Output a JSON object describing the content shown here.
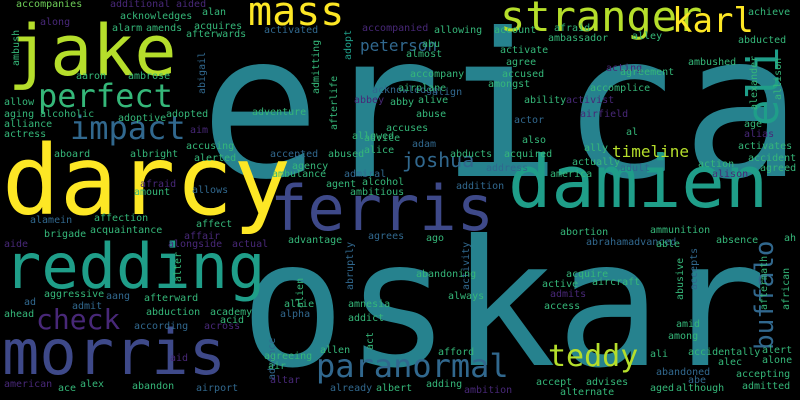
{
  "palette": {
    "background": "#000000",
    "yellow": "#fde725",
    "lime": "#b5de2b",
    "green": "#6ece58",
    "teal_green": "#35b779",
    "teal": "#1f9e89",
    "blue_teal": "#26828e",
    "steel": "#31688e",
    "indigo": "#3e4989",
    "purple": "#482878",
    "dark_purple": "#440154"
  },
  "words": [
    {
      "text": "erica",
      "color": "#26828e"
    },
    {
      "text": "oskar",
      "color": "#26828e"
    },
    {
      "text": "darcy",
      "color": "#fde725"
    },
    {
      "text": "damien",
      "color": "#1f9e89"
    },
    {
      "text": "jake",
      "color": "#b5de2b"
    },
    {
      "text": "ferris",
      "color": "#3e4989"
    },
    {
      "text": "redding",
      "color": "#1f9e89"
    },
    {
      "text": "morris",
      "color": "#3e4989"
    },
    {
      "text": "stranger",
      "color": "#b5de2b"
    },
    {
      "text": "mass",
      "color": "#fde725"
    },
    {
      "text": "karl",
      "color": "#fde725"
    },
    {
      "text": "perfect",
      "color": "#35b779"
    },
    {
      "text": "impact",
      "color": "#31688e"
    },
    {
      "text": "paranormal",
      "color": "#31688e"
    },
    {
      "text": "check",
      "color": "#482878"
    },
    {
      "text": "teddy",
      "color": "#b5de2b"
    },
    {
      "text": "eli",
      "color": "#1f9e89"
    },
    {
      "text": "buffalo",
      "color": "#31688e"
    },
    {
      "text": "joshua",
      "color": "#31688e"
    },
    {
      "text": "peterson",
      "color": "#31688e"
    },
    {
      "text": "timeline",
      "color": "#b5de2b"
    },
    {
      "text": "accompanies",
      "color": "#6ece58"
    },
    {
      "text": "additional",
      "color": "#482878"
    },
    {
      "text": "aided",
      "color": "#482878"
    },
    {
      "text": "alan",
      "color": "#35b779"
    },
    {
      "text": "acknowledges",
      "color": "#35b779"
    },
    {
      "text": "acquires",
      "color": "#35b779"
    },
    {
      "text": "alarm",
      "color": "#35b779"
    },
    {
      "text": "amends",
      "color": "#35b779"
    },
    {
      "text": "afterwards",
      "color": "#35b779"
    },
    {
      "text": "activated",
      "color": "#31688e"
    },
    {
      "text": "adopt",
      "color": "#1f9e89"
    },
    {
      "text": "accompanied",
      "color": "#482878"
    },
    {
      "text": "abu",
      "color": "#35b779"
    },
    {
      "text": "almost",
      "color": "#35b779"
    },
    {
      "text": "allowing",
      "color": "#35b779"
    },
    {
      "text": "account",
      "color": "#35b779"
    },
    {
      "text": "afraid",
      "color": "#35b779"
    },
    {
      "text": "ambassador",
      "color": "#35b779"
    },
    {
      "text": "achieve",
      "color": "#35b779"
    },
    {
      "text": "abducted",
      "color": "#35b779"
    },
    {
      "text": "alley",
      "color": "#35b779"
    },
    {
      "text": "along",
      "color": "#482878"
    },
    {
      "text": "ambush",
      "color": "#35b779"
    },
    {
      "text": "aaron",
      "color": "#35b779"
    },
    {
      "text": "ambrose",
      "color": "#35b779"
    },
    {
      "text": "abigail",
      "color": "#31688e"
    },
    {
      "text": "admitting",
      "color": "#35b779"
    },
    {
      "text": "afterlife",
      "color": "#35b779"
    },
    {
      "text": "acknowledge",
      "color": "#31688e"
    },
    {
      "text": "accompany",
      "color": "#35b779"
    },
    {
      "text": "amongst",
      "color": "#35b779"
    },
    {
      "text": "activate",
      "color": "#35b779"
    },
    {
      "text": "agree",
      "color": "#35b779"
    },
    {
      "text": "accused",
      "color": "#35b779"
    },
    {
      "text": "acting",
      "color": "#482878"
    },
    {
      "text": "agreement",
      "color": "#35b779"
    },
    {
      "text": "ambushed",
      "color": "#35b779"
    },
    {
      "text": "alexander",
      "color": "#35b779"
    },
    {
      "text": "allison",
      "color": "#35b779"
    },
    {
      "text": "allow",
      "color": "#35b779"
    },
    {
      "text": "aging",
      "color": "#35b779"
    },
    {
      "text": "alcoholic",
      "color": "#35b779"
    },
    {
      "text": "adoptive",
      "color": "#35b779"
    },
    {
      "text": "alliance",
      "color": "#35b779"
    },
    {
      "text": "adopted",
      "color": "#35b779"
    },
    {
      "text": "aim",
      "color": "#482878"
    },
    {
      "text": "adventure",
      "color": "#35b779"
    },
    {
      "text": "abbey",
      "color": "#482878"
    },
    {
      "text": "abby",
      "color": "#35b779"
    },
    {
      "text": "align",
      "color": "#31688e"
    },
    {
      "text": "alive",
      "color": "#35b779"
    },
    {
      "text": "abuse",
      "color": "#35b779"
    },
    {
      "text": "airplane",
      "color": "#35b779"
    },
    {
      "text": "ability",
      "color": "#35b779"
    },
    {
      "text": "activist",
      "color": "#482878"
    },
    {
      "text": "accomplice",
      "color": "#35b779"
    },
    {
      "text": "airfield",
      "color": "#482878"
    },
    {
      "text": "al",
      "color": "#35b779"
    },
    {
      "text": "age",
      "color": "#35b779"
    },
    {
      "text": "alias",
      "color": "#482878"
    },
    {
      "text": "activates",
      "color": "#35b779"
    },
    {
      "text": "accident",
      "color": "#35b779"
    },
    {
      "text": "agreed",
      "color": "#35b779"
    },
    {
      "text": "actress",
      "color": "#35b779"
    },
    {
      "text": "aboard",
      "color": "#35b779"
    },
    {
      "text": "albright",
      "color": "#35b779"
    },
    {
      "text": "alerted",
      "color": "#35b779"
    },
    {
      "text": "accusing",
      "color": "#35b779"
    },
    {
      "text": "accepted",
      "color": "#31688e"
    },
    {
      "text": "allowed",
      "color": "#35b779"
    },
    {
      "text": "advice",
      "color": "#35b779"
    },
    {
      "text": "accuses",
      "color": "#35b779"
    },
    {
      "text": "adam",
      "color": "#31688e"
    },
    {
      "text": "actor",
      "color": "#31688e"
    },
    {
      "text": "also",
      "color": "#35b779"
    },
    {
      "text": "ally",
      "color": "#35b779"
    },
    {
      "text": "abused",
      "color": "#35b779"
    },
    {
      "text": "alice",
      "color": "#35b779"
    },
    {
      "text": "abducts",
      "color": "#35b779"
    },
    {
      "text": "acquired",
      "color": "#35b779"
    },
    {
      "text": "actually",
      "color": "#35b779"
    },
    {
      "text": "action",
      "color": "#35b779"
    },
    {
      "text": "alison",
      "color": "#482878"
    },
    {
      "text": "ambulance",
      "color": "#35b779"
    },
    {
      "text": "agency",
      "color": "#35b779"
    },
    {
      "text": "admiral",
      "color": "#31688e"
    },
    {
      "text": "alcohol",
      "color": "#35b779"
    },
    {
      "text": "address",
      "color": "#31688e"
    },
    {
      "text": "america",
      "color": "#35b779"
    },
    {
      "text": "adult",
      "color": "#31688e"
    },
    {
      "text": "afraid",
      "color": "#482878"
    },
    {
      "text": "amount",
      "color": "#35b779"
    },
    {
      "text": "allows",
      "color": "#31688e"
    },
    {
      "text": "agent",
      "color": "#35b779"
    },
    {
      "text": "ambitious",
      "color": "#35b779"
    },
    {
      "text": "addition",
      "color": "#31688e"
    },
    {
      "text": "affection",
      "color": "#35b779"
    },
    {
      "text": "affect",
      "color": "#35b779"
    },
    {
      "text": "alamein",
      "color": "#31688e"
    },
    {
      "text": "acquaintance",
      "color": "#35b779"
    },
    {
      "text": "affair",
      "color": "#482878"
    },
    {
      "text": "brigade",
      "color": "#35b779"
    },
    {
      "text": "alongside",
      "color": "#482878"
    },
    {
      "text": "actual",
      "color": "#482878"
    },
    {
      "text": "aide",
      "color": "#482878"
    },
    {
      "text": "abortion",
      "color": "#35b779"
    },
    {
      "text": "ammunition",
      "color": "#35b779"
    },
    {
      "text": "abrahamadvanced",
      "color": "#31688e"
    },
    {
      "text": "able",
      "color": "#35b779"
    },
    {
      "text": "absence",
      "color": "#35b779"
    },
    {
      "text": "ah",
      "color": "#35b779"
    },
    {
      "text": "advantage",
      "color": "#35b779"
    },
    {
      "text": "agrees",
      "color": "#31688e"
    },
    {
      "text": "ago",
      "color": "#35b779"
    },
    {
      "text": "abruptly",
      "color": "#31688e"
    },
    {
      "text": "activity",
      "color": "#31688e"
    },
    {
      "text": "accepts",
      "color": "#31688e"
    },
    {
      "text": "alter",
      "color": "#35b779"
    },
    {
      "text": "alien",
      "color": "#35b779"
    },
    {
      "text": "acquire",
      "color": "#35b779"
    },
    {
      "text": "abandoning",
      "color": "#35b779"
    },
    {
      "text": "active",
      "color": "#35b779"
    },
    {
      "text": "aircraft",
      "color": "#35b779"
    },
    {
      "text": "abusive",
      "color": "#35b779"
    },
    {
      "text": "aftermath",
      "color": "#35b779"
    },
    {
      "text": "african",
      "color": "#35b779"
    },
    {
      "text": "aggressive",
      "color": "#35b779"
    },
    {
      "text": "aang",
      "color": "#31688e"
    },
    {
      "text": "afterward",
      "color": "#35b779"
    },
    {
      "text": "admits",
      "color": "#482878"
    },
    {
      "text": "always",
      "color": "#35b779"
    },
    {
      "text": "ad",
      "color": "#31688e"
    },
    {
      "text": "admit",
      "color": "#31688e"
    },
    {
      "text": "allie",
      "color": "#35b779"
    },
    {
      "text": "amnesia",
      "color": "#35b779"
    },
    {
      "text": "access",
      "color": "#35b779"
    },
    {
      "text": "ahead",
      "color": "#35b779"
    },
    {
      "text": "abduction",
      "color": "#35b779"
    },
    {
      "text": "academy",
      "color": "#35b779"
    },
    {
      "text": "alpha",
      "color": "#31688e"
    },
    {
      "text": "addict",
      "color": "#35b779"
    },
    {
      "text": "amid",
      "color": "#35b779"
    },
    {
      "text": "according",
      "color": "#31688e"
    },
    {
      "text": "across",
      "color": "#482878"
    },
    {
      "text": "acid",
      "color": "#35b779"
    },
    {
      "text": "among",
      "color": "#35b779"
    },
    {
      "text": "allen",
      "color": "#35b779"
    },
    {
      "text": "act",
      "color": "#35b779"
    },
    {
      "text": "afford",
      "color": "#35b779"
    },
    {
      "text": "ali",
      "color": "#35b779"
    },
    {
      "text": "accidentally",
      "color": "#35b779"
    },
    {
      "text": "alert",
      "color": "#35b779"
    },
    {
      "text": "alec",
      "color": "#35b779"
    },
    {
      "text": "alone",
      "color": "#35b779"
    },
    {
      "text": "aid",
      "color": "#482878"
    },
    {
      "text": "advance",
      "color": "#31688e"
    },
    {
      "text": "agreeing",
      "color": "#35b779"
    },
    {
      "text": "air",
      "color": "#35b779"
    },
    {
      "text": "altar",
      "color": "#482878"
    },
    {
      "text": "albert",
      "color": "#35b779"
    },
    {
      "text": "abandoned",
      "color": "#31688e"
    },
    {
      "text": "abe",
      "color": "#31688e"
    },
    {
      "text": "accepting",
      "color": "#35b779"
    },
    {
      "text": "american",
      "color": "#482878"
    },
    {
      "text": "ace",
      "color": "#35b779"
    },
    {
      "text": "alex",
      "color": "#35b779"
    },
    {
      "text": "abandon",
      "color": "#35b779"
    },
    {
      "text": "airport",
      "color": "#31688e"
    },
    {
      "text": "already",
      "color": "#31688e"
    },
    {
      "text": "adding",
      "color": "#35b779"
    },
    {
      "text": "ambition",
      "color": "#482878"
    },
    {
      "text": "accept",
      "color": "#35b779"
    },
    {
      "text": "advises",
      "color": "#35b779"
    },
    {
      "text": "alternate",
      "color": "#35b779"
    },
    {
      "text": "aged",
      "color": "#35b779"
    },
    {
      "text": "although",
      "color": "#35b779"
    },
    {
      "text": "admitted",
      "color": "#35b779"
    }
  ]
}
